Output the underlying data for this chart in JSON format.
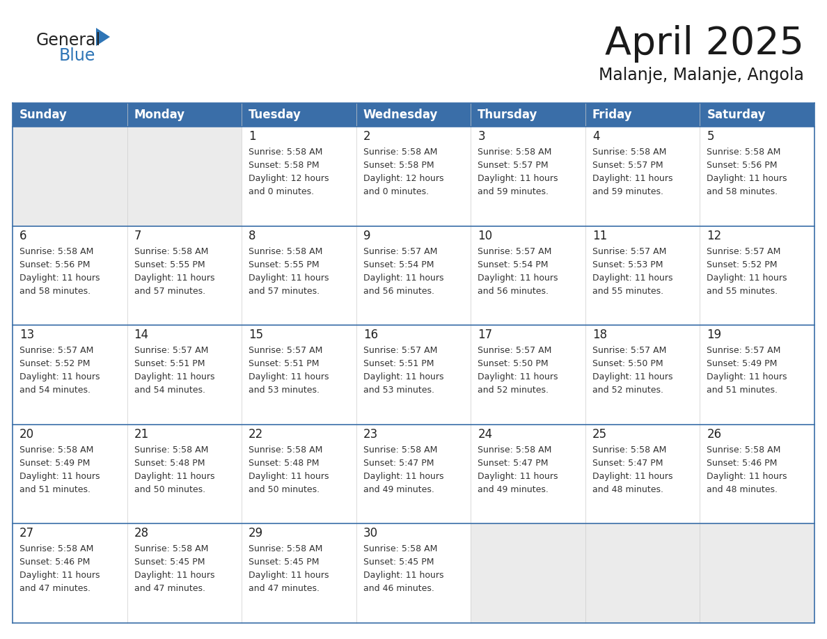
{
  "title": "April 2025",
  "subtitle": "Malanje, Malanje, Angola",
  "days_of_week": [
    "Sunday",
    "Monday",
    "Tuesday",
    "Wednesday",
    "Thursday",
    "Friday",
    "Saturday"
  ],
  "header_bg": "#3a6ea8",
  "header_text_color": "#FFFFFF",
  "cell_bg_white": "#FFFFFF",
  "cell_bg_gray": "#EBEBEB",
  "border_color": "#3a6ea8",
  "row_border_color": "#3a6ea8",
  "day_number_color": "#222222",
  "cell_text_color": "#333333",
  "title_color": "#1a1a1a",
  "subtitle_color": "#1a1a1a",
  "logo_general_color": "#222222",
  "logo_blue_color": "#2E75B6",
  "calendar_data": [
    [
      {
        "day": null,
        "info": ""
      },
      {
        "day": null,
        "info": ""
      },
      {
        "day": 1,
        "info": "Sunrise: 5:58 AM\nSunset: 5:58 PM\nDaylight: 12 hours\nand 0 minutes."
      },
      {
        "day": 2,
        "info": "Sunrise: 5:58 AM\nSunset: 5:58 PM\nDaylight: 12 hours\nand 0 minutes."
      },
      {
        "day": 3,
        "info": "Sunrise: 5:58 AM\nSunset: 5:57 PM\nDaylight: 11 hours\nand 59 minutes."
      },
      {
        "day": 4,
        "info": "Sunrise: 5:58 AM\nSunset: 5:57 PM\nDaylight: 11 hours\nand 59 minutes."
      },
      {
        "day": 5,
        "info": "Sunrise: 5:58 AM\nSunset: 5:56 PM\nDaylight: 11 hours\nand 58 minutes."
      }
    ],
    [
      {
        "day": 6,
        "info": "Sunrise: 5:58 AM\nSunset: 5:56 PM\nDaylight: 11 hours\nand 58 minutes."
      },
      {
        "day": 7,
        "info": "Sunrise: 5:58 AM\nSunset: 5:55 PM\nDaylight: 11 hours\nand 57 minutes."
      },
      {
        "day": 8,
        "info": "Sunrise: 5:58 AM\nSunset: 5:55 PM\nDaylight: 11 hours\nand 57 minutes."
      },
      {
        "day": 9,
        "info": "Sunrise: 5:57 AM\nSunset: 5:54 PM\nDaylight: 11 hours\nand 56 minutes."
      },
      {
        "day": 10,
        "info": "Sunrise: 5:57 AM\nSunset: 5:54 PM\nDaylight: 11 hours\nand 56 minutes."
      },
      {
        "day": 11,
        "info": "Sunrise: 5:57 AM\nSunset: 5:53 PM\nDaylight: 11 hours\nand 55 minutes."
      },
      {
        "day": 12,
        "info": "Sunrise: 5:57 AM\nSunset: 5:52 PM\nDaylight: 11 hours\nand 55 minutes."
      }
    ],
    [
      {
        "day": 13,
        "info": "Sunrise: 5:57 AM\nSunset: 5:52 PM\nDaylight: 11 hours\nand 54 minutes."
      },
      {
        "day": 14,
        "info": "Sunrise: 5:57 AM\nSunset: 5:51 PM\nDaylight: 11 hours\nand 54 minutes."
      },
      {
        "day": 15,
        "info": "Sunrise: 5:57 AM\nSunset: 5:51 PM\nDaylight: 11 hours\nand 53 minutes."
      },
      {
        "day": 16,
        "info": "Sunrise: 5:57 AM\nSunset: 5:51 PM\nDaylight: 11 hours\nand 53 minutes."
      },
      {
        "day": 17,
        "info": "Sunrise: 5:57 AM\nSunset: 5:50 PM\nDaylight: 11 hours\nand 52 minutes."
      },
      {
        "day": 18,
        "info": "Sunrise: 5:57 AM\nSunset: 5:50 PM\nDaylight: 11 hours\nand 52 minutes."
      },
      {
        "day": 19,
        "info": "Sunrise: 5:57 AM\nSunset: 5:49 PM\nDaylight: 11 hours\nand 51 minutes."
      }
    ],
    [
      {
        "day": 20,
        "info": "Sunrise: 5:58 AM\nSunset: 5:49 PM\nDaylight: 11 hours\nand 51 minutes."
      },
      {
        "day": 21,
        "info": "Sunrise: 5:58 AM\nSunset: 5:48 PM\nDaylight: 11 hours\nand 50 minutes."
      },
      {
        "day": 22,
        "info": "Sunrise: 5:58 AM\nSunset: 5:48 PM\nDaylight: 11 hours\nand 50 minutes."
      },
      {
        "day": 23,
        "info": "Sunrise: 5:58 AM\nSunset: 5:47 PM\nDaylight: 11 hours\nand 49 minutes."
      },
      {
        "day": 24,
        "info": "Sunrise: 5:58 AM\nSunset: 5:47 PM\nDaylight: 11 hours\nand 49 minutes."
      },
      {
        "day": 25,
        "info": "Sunrise: 5:58 AM\nSunset: 5:47 PM\nDaylight: 11 hours\nand 48 minutes."
      },
      {
        "day": 26,
        "info": "Sunrise: 5:58 AM\nSunset: 5:46 PM\nDaylight: 11 hours\nand 48 minutes."
      }
    ],
    [
      {
        "day": 27,
        "info": "Sunrise: 5:58 AM\nSunset: 5:46 PM\nDaylight: 11 hours\nand 47 minutes."
      },
      {
        "day": 28,
        "info": "Sunrise: 5:58 AM\nSunset: 5:45 PM\nDaylight: 11 hours\nand 47 minutes."
      },
      {
        "day": 29,
        "info": "Sunrise: 5:58 AM\nSunset: 5:45 PM\nDaylight: 11 hours\nand 47 minutes."
      },
      {
        "day": 30,
        "info": "Sunrise: 5:58 AM\nSunset: 5:45 PM\nDaylight: 11 hours\nand 46 minutes."
      },
      {
        "day": null,
        "info": ""
      },
      {
        "day": null,
        "info": ""
      },
      {
        "day": null,
        "info": ""
      }
    ]
  ]
}
